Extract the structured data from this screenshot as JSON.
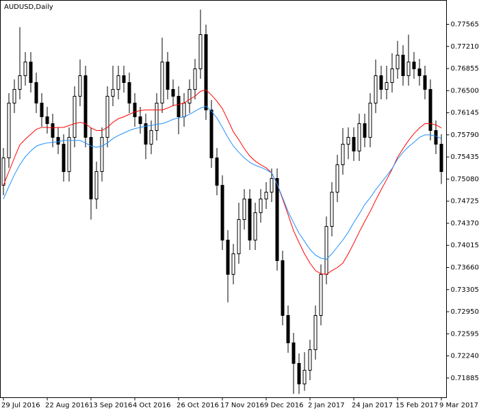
{
  "chart_data": {
    "type": "candlestick",
    "title": "AUDUSD,Daily",
    "categories": [
      "29 Jul 2016",
      null,
      null,
      null,
      null,
      null,
      null,
      null,
      "22 Aug 2016",
      null,
      null,
      null,
      null,
      null,
      null,
      null,
      "13 Sep 2016",
      null,
      null,
      null,
      null,
      null,
      null,
      null,
      "4 Oct 2016",
      null,
      null,
      null,
      null,
      null,
      null,
      null,
      "26 Oct 2016",
      null,
      null,
      null,
      null,
      null,
      null,
      null,
      "17 Nov 2016",
      null,
      null,
      null,
      null,
      null,
      null,
      null,
      "9 Dec 2016",
      null,
      null,
      null,
      null,
      null,
      null,
      null,
      "2 Jan 2017",
      null,
      null,
      null,
      null,
      null,
      null,
      null,
      "24 Jan 2017",
      null,
      null,
      null,
      null,
      null,
      null,
      null,
      "15 Feb 2017",
      null,
      null,
      null,
      null,
      null,
      null,
      null,
      "9 Mar 2017"
    ],
    "open": [
      0.7498,
      0.7542,
      0.763,
      0.7652,
      0.7674,
      0.7696,
      0.7663,
      0.763,
      0.7608,
      0.7597,
      0.7575,
      0.7564,
      0.752,
      0.7575,
      0.7641,
      0.7674,
      0.7575,
      0.7476,
      0.752,
      0.7575,
      0.7641,
      0.7652,
      0.7674,
      0.7663,
      0.763,
      0.7608,
      0.7597,
      0.7564,
      0.7586,
      0.763,
      0.7696,
      0.7652,
      0.7641,
      0.7608,
      0.763,
      0.7652,
      0.7685,
      0.774,
      0.7619,
      0.7542,
      0.7498,
      0.741,
      0.7355,
      0.7388,
      0.7443,
      0.7476,
      0.741,
      0.7454,
      0.7476,
      0.7487,
      0.7509,
      0.7377,
      0.7289,
      0.7245,
      0.7212,
      0.7179,
      0.7201,
      0.7234,
      0.7289,
      0.7355,
      0.7432,
      0.7487,
      0.7531,
      0.7564,
      0.7575,
      0.7553,
      0.7597,
      0.7575,
      0.763,
      0.7674,
      0.7652,
      0.7663,
      0.7685,
      0.7707,
      0.7674,
      0.7696,
      0.7685,
      0.7674,
      0.7652,
      0.7586,
      0.7564
    ],
    "high": [
      0.7558,
      0.7646,
      0.7668,
      0.7752,
      0.7712,
      0.7712,
      0.7679,
      0.7646,
      0.7624,
      0.7613,
      0.7591,
      0.758,
      0.7591,
      0.7657,
      0.77,
      0.769,
      0.7591,
      0.7536,
      0.7591,
      0.7657,
      0.769,
      0.769,
      0.769,
      0.7679,
      0.7646,
      0.7624,
      0.7613,
      0.7602,
      0.7646,
      0.7735,
      0.7712,
      0.7668,
      0.7657,
      0.7646,
      0.7668,
      0.7701,
      0.778,
      0.7756,
      0.7635,
      0.7558,
      0.7514,
      0.7426,
      0.7404,
      0.747,
      0.7492,
      0.7492,
      0.747,
      0.7492,
      0.7503,
      0.7525,
      0.7525,
      0.7393,
      0.7305,
      0.7261,
      0.7228,
      0.723,
      0.725,
      0.7305,
      0.7371,
      0.7448,
      0.7503,
      0.7547,
      0.759,
      0.7591,
      0.7591,
      0.7613,
      0.7613,
      0.7646,
      0.77,
      0.769,
      0.769,
      0.771,
      0.773,
      0.7723,
      0.774,
      0.7712,
      0.7701,
      0.769,
      0.7668,
      0.7602,
      0.758
    ],
    "low": [
      0.7482,
      0.7526,
      0.7614,
      0.7636,
      0.7658,
      0.7647,
      0.7614,
      0.7592,
      0.7581,
      0.7559,
      0.7548,
      0.7504,
      0.7504,
      0.7559,
      0.7625,
      0.7559,
      0.7443,
      0.746,
      0.7504,
      0.7559,
      0.7625,
      0.7636,
      0.7647,
      0.7614,
      0.7592,
      0.7581,
      0.754,
      0.7548,
      0.757,
      0.7614,
      0.7636,
      0.7625,
      0.758,
      0.7592,
      0.7614,
      0.7636,
      0.7669,
      0.7603,
      0.7526,
      0.7482,
      0.7394,
      0.731,
      0.7339,
      0.7372,
      0.7427,
      0.7394,
      0.7394,
      0.7438,
      0.746,
      0.7471,
      0.7361,
      0.7273,
      0.7229,
      0.7163,
      0.7163,
      0.7168,
      0.7185,
      0.7218,
      0.7273,
      0.7339,
      0.7416,
      0.7471,
      0.7515,
      0.754,
      0.7537,
      0.7537,
      0.7559,
      0.7559,
      0.7614,
      0.7636,
      0.7636,
      0.7647,
      0.7669,
      0.7658,
      0.7658,
      0.7669,
      0.7658,
      0.7636,
      0.757,
      0.7548,
      0.75
    ],
    "close": [
      0.7542,
      0.763,
      0.7652,
      0.7674,
      0.7696,
      0.7663,
      0.763,
      0.7608,
      0.7597,
      0.7575,
      0.7564,
      0.752,
      0.7575,
      0.7641,
      0.7674,
      0.7575,
      0.7476,
      0.752,
      0.7575,
      0.7641,
      0.7652,
      0.7674,
      0.7663,
      0.763,
      0.7608,
      0.7597,
      0.7564,
      0.7586,
      0.763,
      0.7696,
      0.7652,
      0.7641,
      0.7608,
      0.763,
      0.7652,
      0.7685,
      0.774,
      0.7619,
      0.7542,
      0.7498,
      0.741,
      0.7355,
      0.7388,
      0.7443,
      0.7476,
      0.741,
      0.7454,
      0.7476,
      0.7487,
      0.7509,
      0.7377,
      0.7289,
      0.7245,
      0.7212,
      0.7179,
      0.7201,
      0.7234,
      0.7289,
      0.7355,
      0.7432,
      0.7487,
      0.7531,
      0.7564,
      0.7575,
      0.7553,
      0.7597,
      0.7575,
      0.763,
      0.7674,
      0.7652,
      0.7663,
      0.7685,
      0.7707,
      0.7674,
      0.7696,
      0.7685,
      0.7674,
      0.7652,
      0.7586,
      0.7564,
      0.752
    ],
    "series": [
      {
        "color": "#ff0000",
        "values": [
          0.7498,
          0.752,
          0.7542,
          0.7563,
          0.7572,
          0.758,
          0.7588,
          0.7591,
          0.7591,
          0.759,
          0.7591,
          0.7591,
          0.7594,
          0.7597,
          0.7599,
          0.7597,
          0.759,
          0.7586,
          0.7586,
          0.7591,
          0.7599,
          0.7605,
          0.7608,
          0.7612,
          0.7616,
          0.7618,
          0.7619,
          0.7619,
          0.7619,
          0.7619,
          0.7622,
          0.7626,
          0.7628,
          0.763,
          0.7636,
          0.7641,
          0.7649,
          0.7651,
          0.7643,
          0.7633,
          0.7621,
          0.7603,
          0.7584,
          0.7571,
          0.7557,
          0.7545,
          0.7537,
          0.7531,
          0.7526,
          0.7518,
          0.75,
          0.7476,
          0.7451,
          0.7425,
          0.7406,
          0.7388,
          0.7373,
          0.7361,
          0.7356,
          0.7355,
          0.7361,
          0.7366,
          0.7373,
          0.7388,
          0.7405,
          0.7423,
          0.744,
          0.7456,
          0.7474,
          0.7491,
          0.7507,
          0.7524,
          0.7543,
          0.7557,
          0.757,
          0.7581,
          0.759,
          0.7597,
          0.7597,
          0.7595,
          0.759
        ]
      },
      {
        "color": "#1e90ff",
        "values": [
          0.7476,
          0.7496,
          0.7515,
          0.7531,
          0.7544,
          0.7553,
          0.7561,
          0.7564,
          0.7566,
          0.7567,
          0.7568,
          0.757,
          0.757,
          0.757,
          0.757,
          0.7566,
          0.7561,
          0.7559,
          0.7561,
          0.7566,
          0.7573,
          0.7578,
          0.7582,
          0.7586,
          0.7589,
          0.7591,
          0.7593,
          0.7594,
          0.7596,
          0.7597,
          0.76,
          0.7604,
          0.7606,
          0.7608,
          0.7612,
          0.7617,
          0.7622,
          0.7625,
          0.7617,
          0.7606,
          0.7591,
          0.7575,
          0.7561,
          0.7551,
          0.7542,
          0.7535,
          0.753,
          0.7527,
          0.7523,
          0.7518,
          0.75,
          0.7478,
          0.7456,
          0.7438,
          0.7421,
          0.7408,
          0.7395,
          0.7386,
          0.7381,
          0.7379,
          0.7388,
          0.7399,
          0.741,
          0.7423,
          0.7438,
          0.7452,
          0.7467,
          0.7478,
          0.7491,
          0.7502,
          0.7513,
          0.7525,
          0.754,
          0.7551,
          0.756,
          0.7567,
          0.7575,
          0.7579,
          0.7579,
          0.7577,
          0.7573
        ]
      }
    ],
    "ylim": [
      0.7157,
      0.7795
    ],
    "yticks": [
      0.77565,
      {
        "value": 0.7721,
        "label": "0.77210"
      },
      0.76855,
      {
        "value": 0.765,
        "label": "0.76500"
      },
      0.76145,
      {
        "value": 0.7579,
        "label": "0.75790"
      },
      0.75435,
      {
        "value": 0.7508,
        "label": "0.75080"
      },
      0.74725,
      {
        "value": 0.7437,
        "label": "0.74370"
      },
      0.74015,
      {
        "value": 0.7366,
        "label": "0.73660"
      },
      0.73305,
      {
        "value": 0.7295,
        "label": "0.72950"
      },
      0.72595,
      {
        "value": 0.7224,
        "label": "0.72240"
      },
      0.71885
    ],
    "up_color": "#ffffff",
    "down_color": "#000000",
    "wick_color": "#000000"
  }
}
